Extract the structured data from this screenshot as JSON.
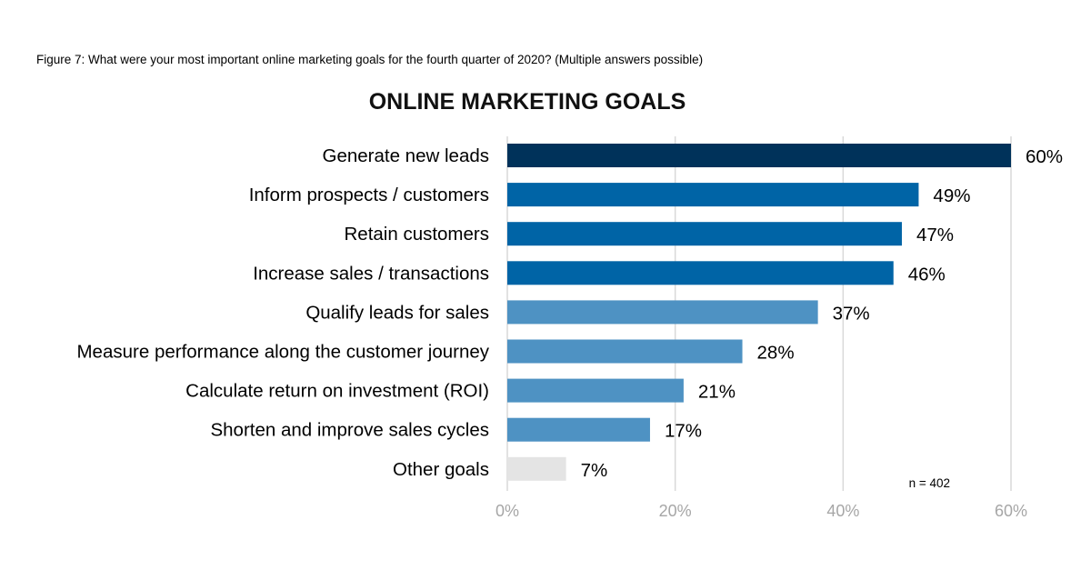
{
  "caption": "Figure 7: What were your most important online marketing goals for the fourth quarter of 2020? (Multiple answers possible)",
  "chart_data": {
    "type": "bar",
    "orientation": "horizontal",
    "title": "ONLINE MARKETING GOALS",
    "categories": [
      "Generate new leads",
      "Inform prospects / customers",
      "Retain customers",
      "Increase sales / transactions",
      "Qualify leads for sales",
      "Measure performance along the customer journey",
      "Calculate return on investment (ROI)",
      "Shorten and improve sales cycles",
      "Other goals"
    ],
    "values": [
      60,
      49,
      47,
      46,
      37,
      28,
      21,
      17,
      7
    ],
    "value_labels": [
      "60%",
      "49%",
      "47%",
      "46%",
      "37%",
      "28%",
      "21%",
      "17%",
      "7%"
    ],
    "colors": [
      "#00325a",
      "#0064a6",
      "#0064a6",
      "#0064a6",
      "#4e92c3",
      "#4e92c3",
      "#4e92c3",
      "#4e92c3",
      "#e4e4e4"
    ],
    "xlim": [
      0,
      60
    ],
    "xticks": [
      0,
      20,
      40,
      60
    ],
    "xtick_labels": [
      "0%",
      "20%",
      "40%",
      "60%"
    ],
    "grid": true,
    "note": "n = 402"
  }
}
